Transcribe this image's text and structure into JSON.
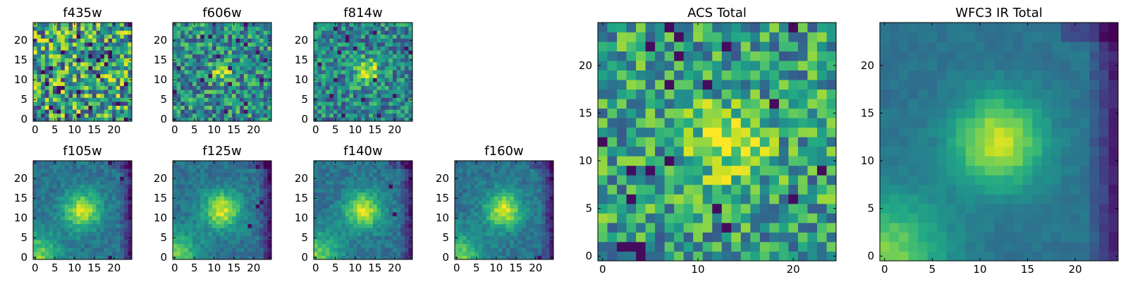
{
  "chart_data": [
    {
      "type": "heatmap",
      "title": "f435w",
      "colormap": "viridis",
      "grid_size": 25,
      "grid": false,
      "xlim": [
        -0.5,
        24.5
      ],
      "ylim": [
        -0.5,
        24.5
      ],
      "xticks": [
        0,
        5,
        10,
        15,
        20
      ],
      "yticks": [
        0,
        5,
        10,
        15,
        20
      ],
      "source_peak": [
        12,
        12
      ],
      "description": "noise-dominated, no visible source",
      "values_shape": "25x25 noise field, no source",
      "seed": 11
    },
    {
      "type": "heatmap",
      "title": "f606w",
      "colormap": "viridis",
      "grid_size": 25,
      "grid": false,
      "xlim": [
        -0.5,
        24.5
      ],
      "ylim": [
        -0.5,
        24.5
      ],
      "xticks": [
        0,
        5,
        10,
        15,
        20
      ],
      "yticks": [
        0,
        5,
        10,
        15,
        20
      ],
      "source_peak": [
        12,
        12
      ],
      "values_shape": "25x25, faint compact source near center",
      "seed": 23
    },
    {
      "type": "heatmap",
      "title": "f814w",
      "colormap": "viridis",
      "grid_size": 25,
      "grid": false,
      "xlim": [
        -0.5,
        24.5
      ],
      "ylim": [
        -0.5,
        24.5
      ],
      "xticks": [
        0,
        5,
        10,
        15,
        20
      ],
      "yticks": [
        0,
        5,
        10,
        15,
        20
      ],
      "source_peak": [
        13,
        12
      ],
      "values_shape": "25x25, moderate compact source near center",
      "seed": 37
    },
    {
      "type": "heatmap",
      "title": "f105w",
      "colormap": "viridis",
      "grid_size": 25,
      "grid": false,
      "xlim": [
        -0.5,
        24.5
      ],
      "ylim": [
        -0.5,
        24.5
      ],
      "xticks": [
        0,
        5,
        10,
        15,
        20
      ],
      "yticks": [
        0,
        5,
        10,
        15,
        20
      ],
      "source_peak": [
        12,
        12
      ],
      "values_shape": "25x25, bright extended source, bright lower-left corner, dark right edge",
      "seed": 41
    },
    {
      "type": "heatmap",
      "title": "f125w",
      "colormap": "viridis",
      "grid_size": 25,
      "grid": false,
      "xlim": [
        -0.5,
        24.5
      ],
      "ylim": [
        -0.5,
        24.5
      ],
      "xticks": [
        0,
        5,
        10,
        15,
        20
      ],
      "yticks": [
        0,
        5,
        10,
        15,
        20
      ],
      "source_peak": [
        12,
        12
      ],
      "values_shape": "25x25, bright extended source, bright lower-left corner, dark right edge",
      "seed": 53
    },
    {
      "type": "heatmap",
      "title": "f140w",
      "colormap": "viridis",
      "grid_size": 25,
      "grid": false,
      "xlim": [
        -0.5,
        24.5
      ],
      "ylim": [
        -0.5,
        24.5
      ],
      "xticks": [
        0,
        5,
        10,
        15,
        20
      ],
      "yticks": [
        0,
        5,
        10,
        15,
        20
      ],
      "source_peak": [
        12,
        12
      ],
      "values_shape": "25x25, bright extended source, bright lower-left corner, dark right edge",
      "seed": 67
    },
    {
      "type": "heatmap",
      "title": "f160w",
      "colormap": "viridis",
      "grid_size": 25,
      "grid": false,
      "xlim": [
        -0.5,
        24.5
      ],
      "ylim": [
        -0.5,
        24.5
      ],
      "xticks": [
        0,
        5,
        10,
        15,
        20
      ],
      "yticks": [
        0,
        5,
        10,
        15,
        20
      ],
      "source_peak": [
        12,
        12
      ],
      "values_shape": "25x25, bright extended source, bright lower-left corner, dark right edge",
      "seed": 79
    },
    {
      "type": "heatmap",
      "title": "ACS Total",
      "colormap": "viridis",
      "grid_size": 25,
      "grid": false,
      "xlim": [
        -0.5,
        24.5
      ],
      "ylim": [
        -0.5,
        24.5
      ],
      "xticks": [
        0,
        10,
        20
      ],
      "yticks": [
        0,
        5,
        10,
        15,
        20
      ],
      "source_peak": [
        13,
        12
      ],
      "values_shape": "25x25, noisy with compact source near (13,12)",
      "seed": 97
    },
    {
      "type": "heatmap",
      "title": "WFC3 IR Total",
      "colormap": "viridis",
      "grid_size": 25,
      "grid": false,
      "xlim": [
        -0.5,
        24.5
      ],
      "ylim": [
        -0.5,
        24.5
      ],
      "xticks": [
        0,
        5,
        10,
        15,
        20
      ],
      "yticks": [
        0,
        5,
        10,
        15,
        20
      ],
      "source_peak": [
        12,
        12
      ],
      "values_shape": "25x25, smooth bright extended source, bright lower-left, dark right edge",
      "seed": 101
    }
  ]
}
